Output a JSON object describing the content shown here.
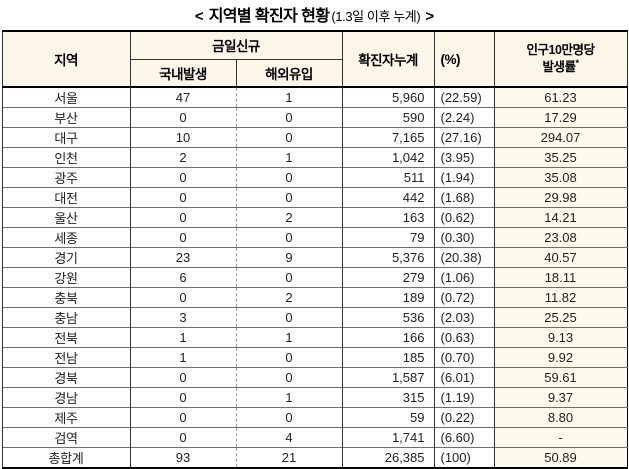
{
  "title": {
    "open": "<",
    "main": "지역별 확진자 현황",
    "sub": "(1.3일 이후 누계)",
    "close": ">"
  },
  "table": {
    "headers": {
      "region": "지역",
      "today_new": "금일신규",
      "domestic": "국내발생",
      "imported": "해외유입",
      "cumulative": "확진자누계",
      "percent": "(%)",
      "rate_line1": "인구10만명당",
      "rate_line2": "발생률",
      "rate_footnote": "*"
    },
    "rows": [
      {
        "region": "서울",
        "domestic": "47",
        "imported": "1",
        "cumulative": "5,960",
        "percent": "(22.59)",
        "rate": "61.23"
      },
      {
        "region": "부산",
        "domestic": "0",
        "imported": "0",
        "cumulative": "590",
        "percent": "(2.24)",
        "rate": "17.29"
      },
      {
        "region": "대구",
        "domestic": "10",
        "imported": "0",
        "cumulative": "7,165",
        "percent": "(27.16)",
        "rate": "294.07"
      },
      {
        "region": "인천",
        "domestic": "2",
        "imported": "1",
        "cumulative": "1,042",
        "percent": "(3.95)",
        "rate": "35.25"
      },
      {
        "region": "광주",
        "domestic": "0",
        "imported": "0",
        "cumulative": "511",
        "percent": "(1.94)",
        "rate": "35.08"
      },
      {
        "region": "대전",
        "domestic": "0",
        "imported": "0",
        "cumulative": "442",
        "percent": "(1.68)",
        "rate": "29.98"
      },
      {
        "region": "울산",
        "domestic": "0",
        "imported": "2",
        "cumulative": "163",
        "percent": "(0.62)",
        "rate": "14.21"
      },
      {
        "region": "세종",
        "domestic": "0",
        "imported": "0",
        "cumulative": "79",
        "percent": "(0.30)",
        "rate": "23.08"
      },
      {
        "region": "경기",
        "domestic": "23",
        "imported": "9",
        "cumulative": "5,376",
        "percent": "(20.38)",
        "rate": "40.57"
      },
      {
        "region": "강원",
        "domestic": "6",
        "imported": "0",
        "cumulative": "279",
        "percent": "(1.06)",
        "rate": "18.11"
      },
      {
        "region": "충북",
        "domestic": "0",
        "imported": "2",
        "cumulative": "189",
        "percent": "(0.72)",
        "rate": "11.82"
      },
      {
        "region": "충남",
        "domestic": "3",
        "imported": "0",
        "cumulative": "536",
        "percent": "(2.03)",
        "rate": "25.25"
      },
      {
        "region": "전북",
        "domestic": "1",
        "imported": "1",
        "cumulative": "166",
        "percent": "(0.63)",
        "rate": "9.13"
      },
      {
        "region": "전남",
        "domestic": "1",
        "imported": "0",
        "cumulative": "185",
        "percent": "(0.70)",
        "rate": "9.92"
      },
      {
        "region": "경북",
        "domestic": "0",
        "imported": "0",
        "cumulative": "1,587",
        "percent": "(6.01)",
        "rate": "59.61"
      },
      {
        "region": "경남",
        "domestic": "0",
        "imported": "1",
        "cumulative": "315",
        "percent": "(1.19)",
        "rate": "9.37"
      },
      {
        "region": "제주",
        "domestic": "0",
        "imported": "0",
        "cumulative": "59",
        "percent": "(0.22)",
        "rate": "8.80"
      },
      {
        "region": "검역",
        "domestic": "0",
        "imported": "4",
        "cumulative": "1,741",
        "percent": "(6.60)",
        "rate": "-"
      }
    ],
    "total_row": {
      "region": "총합계",
      "domestic": "93",
      "imported": "21",
      "cumulative": "26,385",
      "percent": "(100)",
      "rate": "50.89"
    }
  }
}
